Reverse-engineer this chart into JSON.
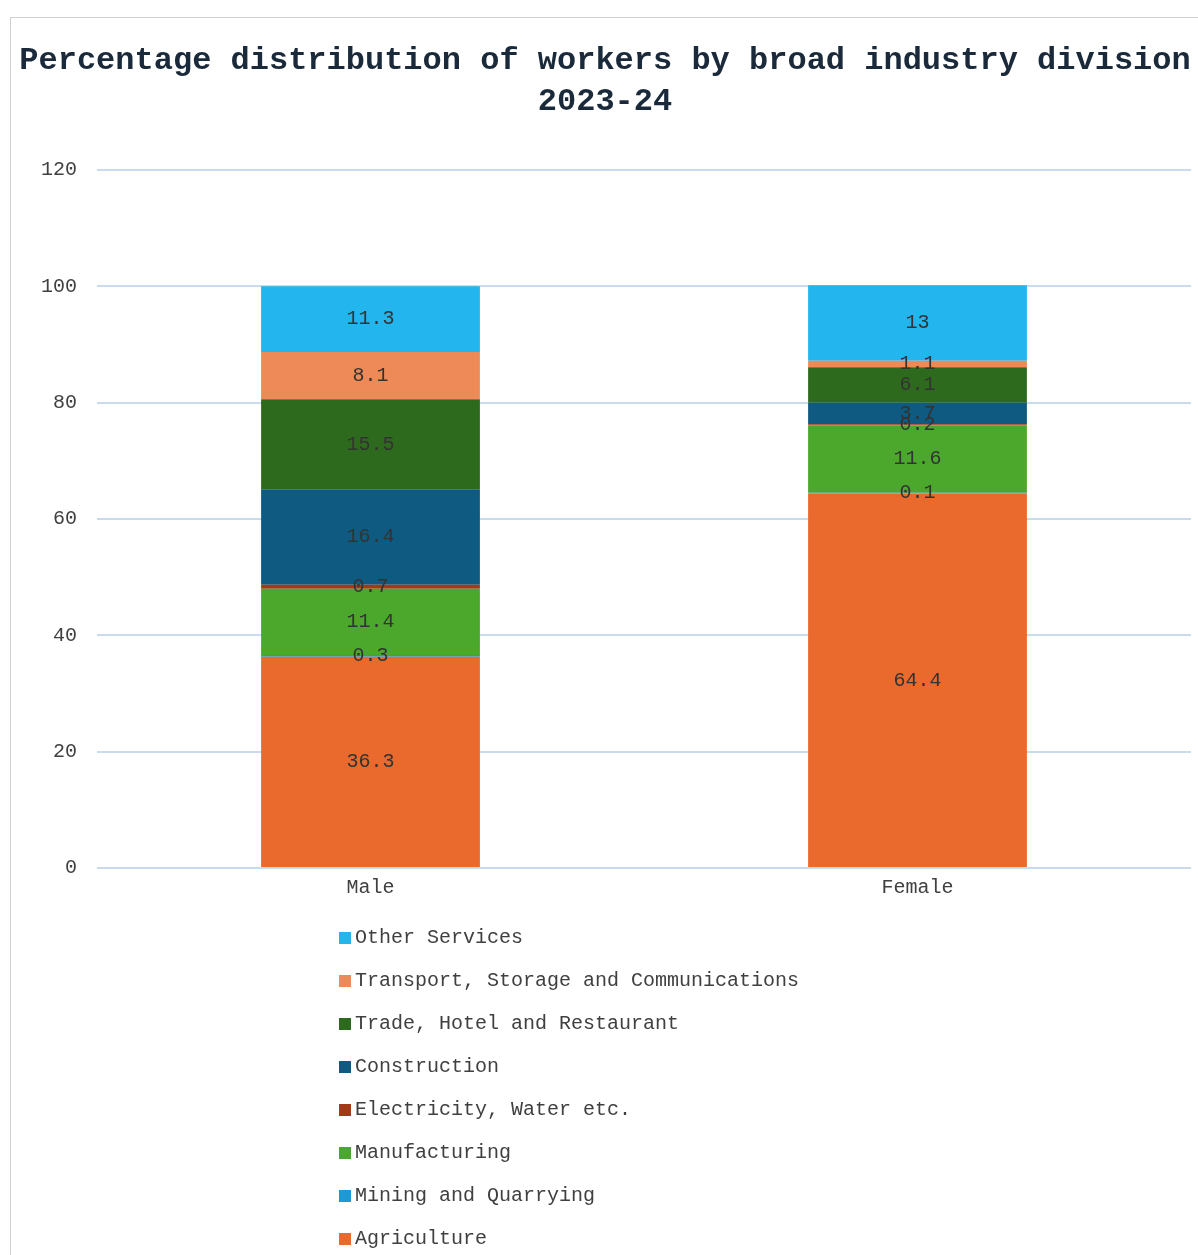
{
  "chart_data": {
    "type": "bar",
    "title": "Percentage distribution of workers by broad industry division 2023-24",
    "categories": [
      "Male",
      "Female"
    ],
    "stacked": true,
    "data_labels": true,
    "grid": "y",
    "legend": "bottom",
    "ylim": [
      0,
      120
    ],
    "yticks": [
      0,
      20,
      40,
      60,
      80,
      100,
      120
    ],
    "series": [
      {
        "name": "Agriculture",
        "color": "#e96a2c",
        "values": [
          36.3,
          64.4
        ]
      },
      {
        "name": "Mining and Quarrying",
        "color": "#1a9ad6",
        "values": [
          0.3,
          0.1
        ]
      },
      {
        "name": "Manufacturing",
        "color": "#4ca82c",
        "values": [
          11.4,
          11.6
        ]
      },
      {
        "name": "Electricity, Water etc.",
        "color": "#a33a14",
        "values": [
          0.7,
          0.2
        ]
      },
      {
        "name": "Construction",
        "color": "#0f5a80",
        "values": [
          16.4,
          3.7
        ]
      },
      {
        "name": "Trade, Hotel and Restaurant",
        "color": "#2e6a1e",
        "values": [
          15.5,
          6.1
        ]
      },
      {
        "name": "Transport, Storage and Communications",
        "color": "#ee8a58",
        "values": [
          8.1,
          1.1
        ]
      },
      {
        "name": "Other Services",
        "color": "#22b5ee",
        "values": [
          11.3,
          13
        ]
      }
    ]
  }
}
